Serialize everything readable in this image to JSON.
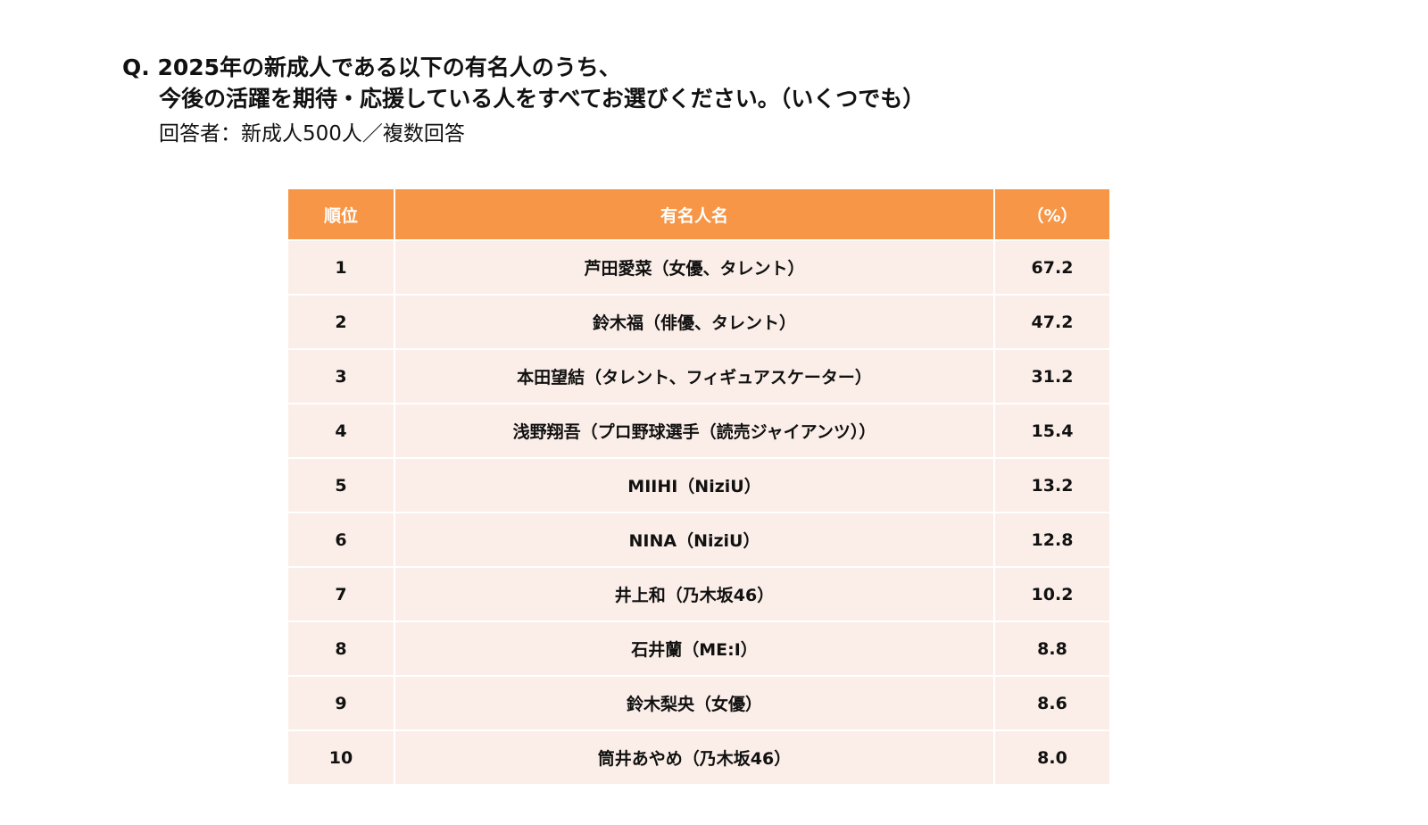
{
  "header": {
    "question": [
      "Q. 2025年の新成人である以下の有名人のうち、",
      "今後の活躍を期待・応援している人をすべてお選びください。（いくつでも）"
    ],
    "respondents": "回答者：新成人500人／複数回答"
  },
  "table": {
    "columns": [
      "順位",
      "有名人名",
      "（%）"
    ],
    "rows": [
      [
        "1",
        "芦田愛菜（女優、タレント）",
        "67.2"
      ],
      [
        "2",
        "鈴木福（俳優、タレント）",
        "47.2"
      ],
      [
        "3",
        "本田望結（タレント、フィギュアスケーター）",
        "31.2"
      ],
      [
        "4",
        "浅野翔吾（プロ野球選手（読売ジャイアンツ））",
        "15.4"
      ],
      [
        "5",
        "MIIHI（NiziU）",
        "13.2"
      ],
      [
        "6",
        "NINA（NiziU）",
        "12.8"
      ],
      [
        "7",
        "井上和（乃木坂46）",
        "10.2"
      ],
      [
        "8",
        "石井蘭（ME:I）",
        "8.8"
      ],
      [
        "9",
        "鈴木梨央（女優）",
        "8.6"
      ],
      [
        "10",
        "筒井あやめ（乃木坂46）",
        "8.0"
      ]
    ]
  }
}
